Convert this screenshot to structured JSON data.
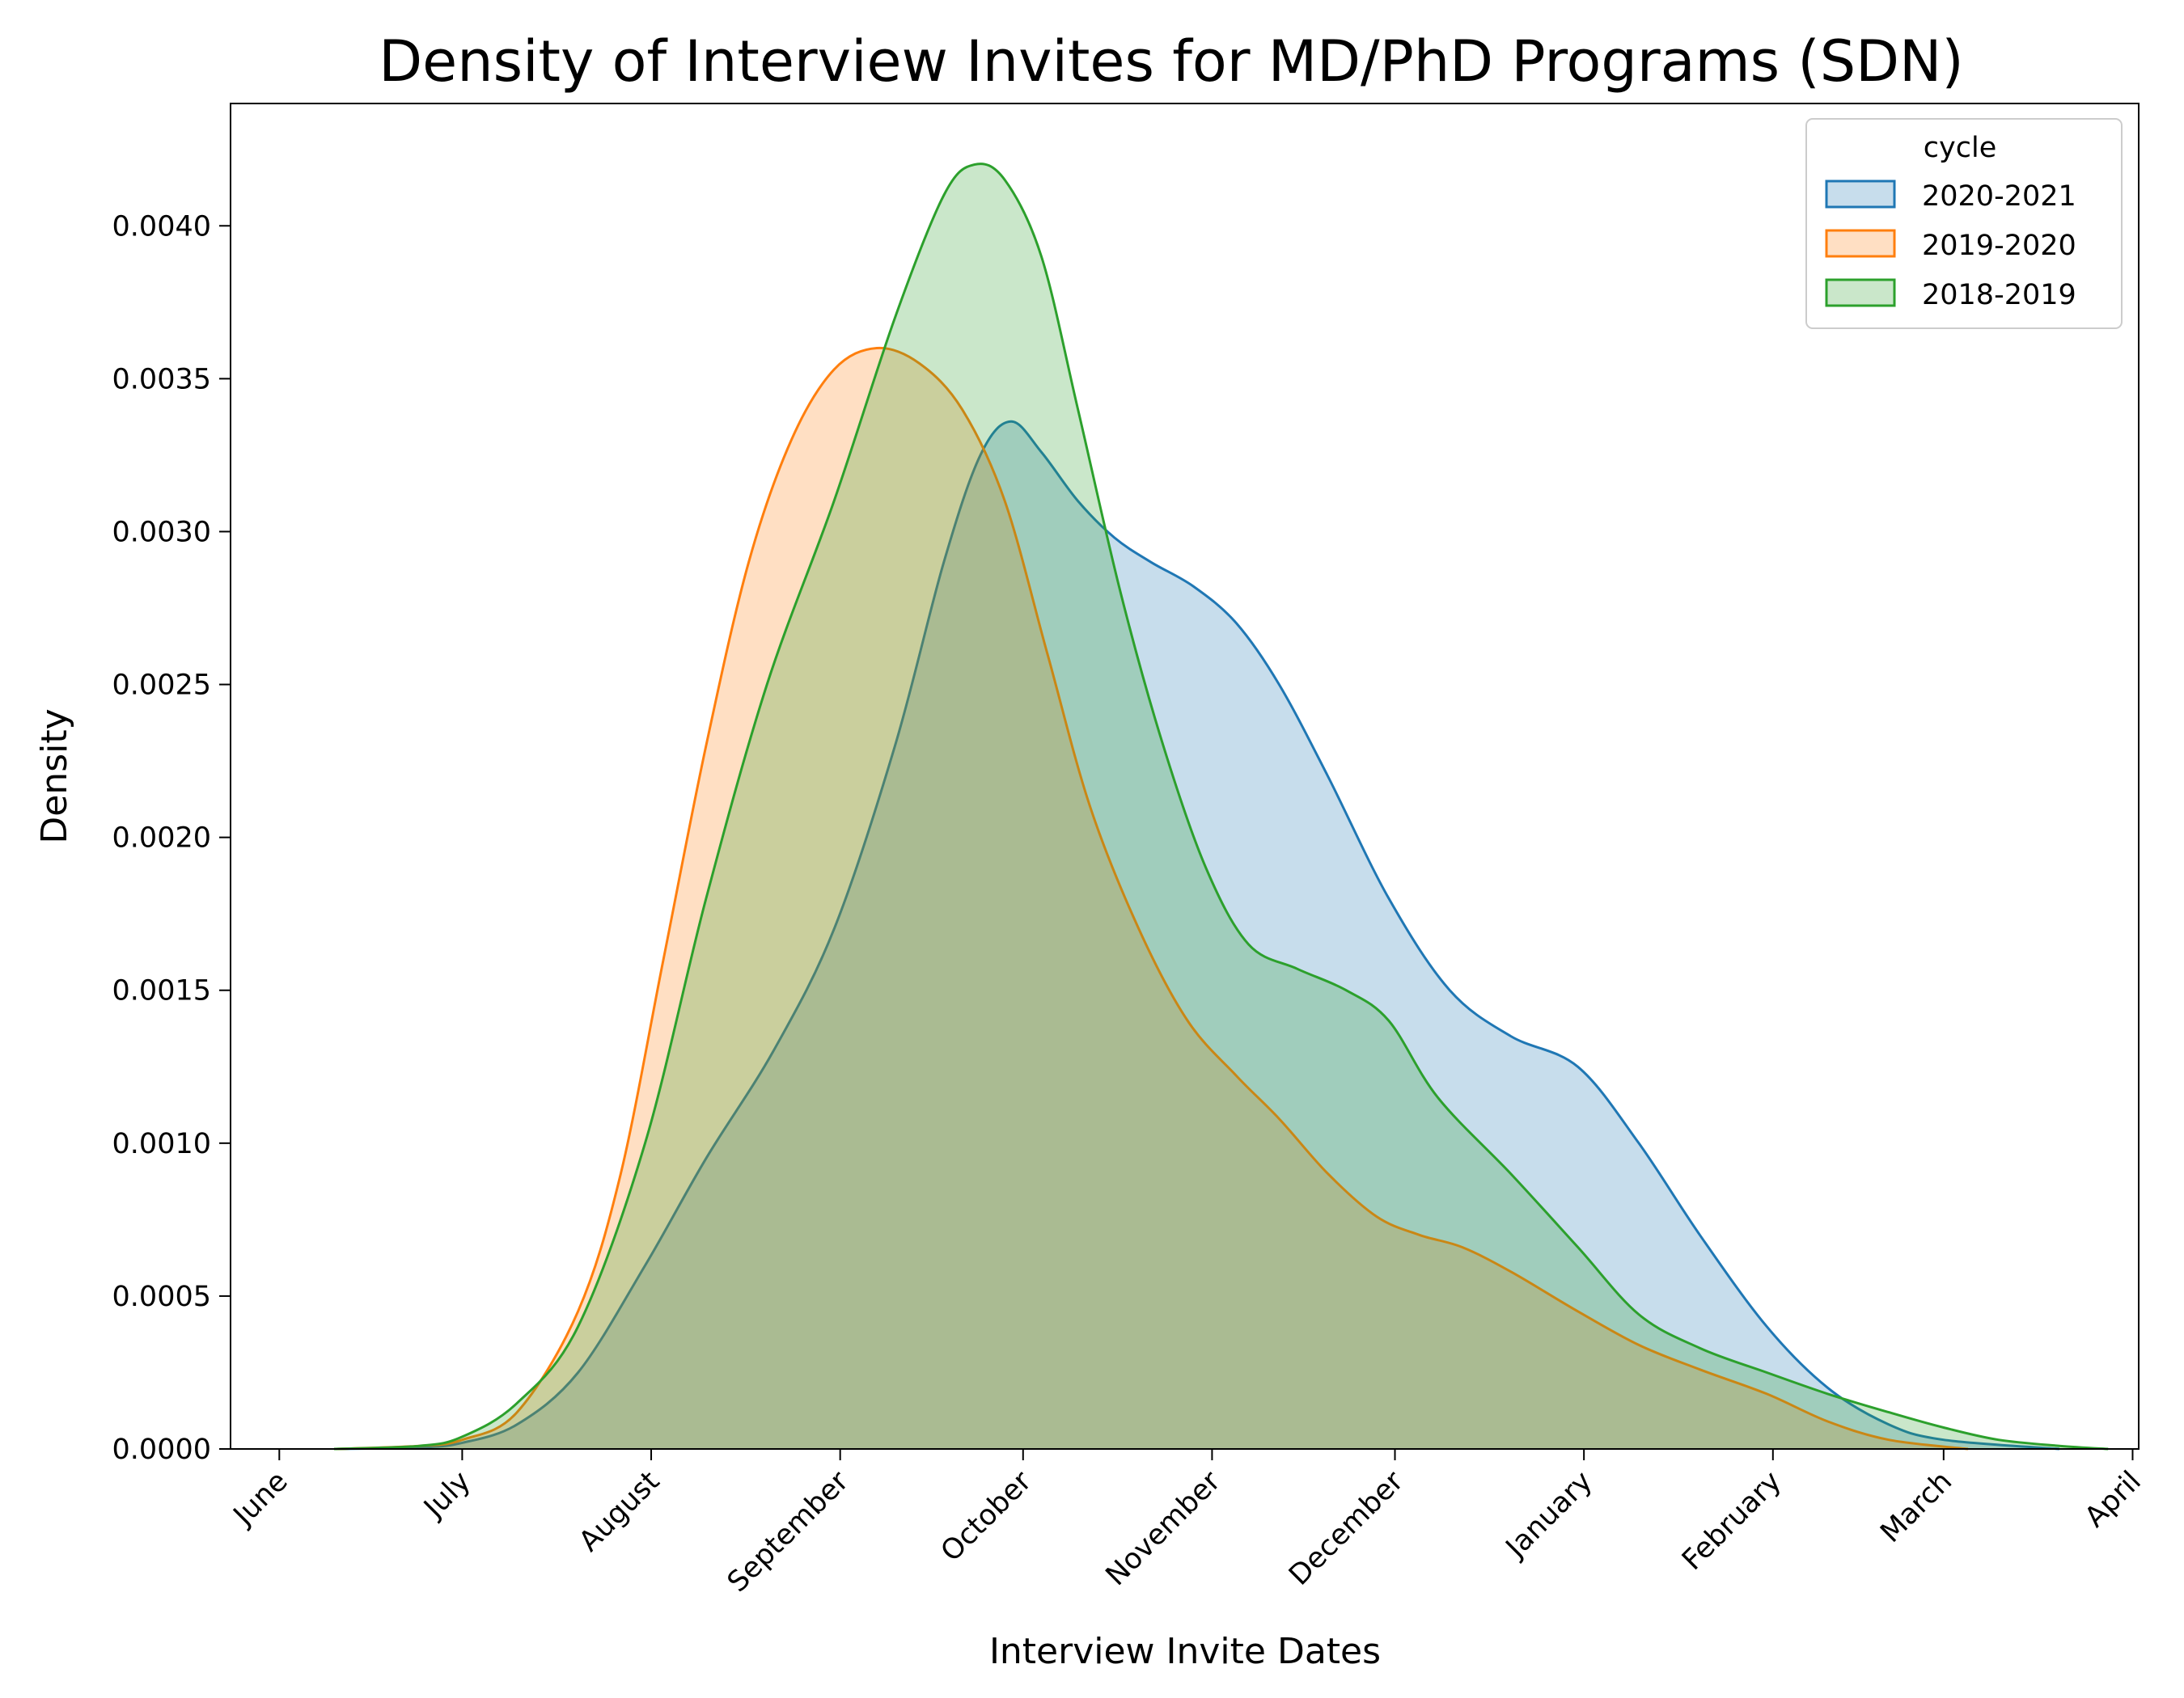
{
  "chart_data": {
    "type": "area",
    "title": "Density of Interview Invites for MD/PhD Programs (SDN)",
    "xlabel": "Interview Invite Dates",
    "ylabel": "Density",
    "x_ticks": [
      "June",
      "July",
      "August",
      "September",
      "October",
      "November",
      "December",
      "January",
      "February",
      "March",
      "April"
    ],
    "xlim": [
      "May 24",
      "April 2"
    ],
    "ylim": [
      0,
      0.0044
    ],
    "y_ticks": [
      "0.0000",
      "0.0005",
      "0.0010",
      "0.0015",
      "0.0020",
      "0.0025",
      "0.0030",
      "0.0035",
      "0.0040"
    ],
    "legend": {
      "title": "cycle",
      "position": "top-right"
    },
    "grid": false,
    "series": [
      {
        "name": "2020-2021",
        "color": "#1f77b4",
        "points": [
          [
            "Jun 10",
            0
          ],
          [
            "Jun 24",
            5e-06
          ],
          [
            "Jul 1",
            2e-05
          ],
          [
            "Jul 10",
            8e-05
          ],
          [
            "Jul 20",
            0.00025
          ],
          [
            "Jul 31",
            0.0006
          ],
          [
            "Aug 10",
            0.00095
          ],
          [
            "Aug 21",
            0.0013
          ],
          [
            "Aug 31",
            0.0017
          ],
          [
            "Sep 10",
            0.0023
          ],
          [
            "Sep 18",
            0.0029
          ],
          [
            "Sep 24",
            0.00325
          ],
          [
            "Sep 29",
            0.00336
          ],
          [
            "Oct 4",
            0.00326
          ],
          [
            "Oct 10",
            0.0031
          ],
          [
            "Oct 16",
            0.00298
          ],
          [
            "Oct 22",
            0.0029
          ],
          [
            "Oct 29",
            0.00282
          ],
          [
            "Nov 5",
            0.0027
          ],
          [
            "Nov 12",
            0.0025
          ],
          [
            "Nov 20",
            0.0022
          ],
          [
            "Nov 30",
            0.0018
          ],
          [
            "Dec 10",
            0.0015
          ],
          [
            "Dec 20",
            0.00135
          ],
          [
            "Dec 31",
            0.00125
          ],
          [
            "Jan 10",
            0.001
          ],
          [
            "Jan 20",
            0.0007
          ],
          [
            "Jan 31",
            0.0004
          ],
          [
            "Feb 10",
            0.0002
          ],
          [
            "Feb 20",
            8e-05
          ],
          [
            "Mar 1",
            3e-05
          ],
          [
            "Mar 20",
            0
          ]
        ]
      },
      {
        "name": "2019-2020",
        "color": "#ff7f0e",
        "points": [
          [
            "Jun 10",
            0
          ],
          [
            "Jun 24",
            1e-05
          ],
          [
            "Jul 1",
            3e-05
          ],
          [
            "Jul 10",
            0.00012
          ],
          [
            "Jul 20",
            0.00045
          ],
          [
            "Jul 27",
            0.0009
          ],
          [
            "Aug 3",
            0.0016
          ],
          [
            "Aug 10",
            0.0023
          ],
          [
            "Aug 17",
            0.0029
          ],
          [
            "Aug 24",
            0.0033
          ],
          [
            "Aug 31",
            0.00353
          ],
          [
            "Sep 7",
            0.0036
          ],
          [
            "Sep 14",
            0.00355
          ],
          [
            "Sep 21",
            0.0034
          ],
          [
            "Sep 28",
            0.0031
          ],
          [
            "Oct 5",
            0.0026
          ],
          [
            "Oct 12",
            0.0021
          ],
          [
            "Oct 20",
            0.0017
          ],
          [
            "Oct 28",
            0.0014
          ],
          [
            "Nov 5",
            0.00122
          ],
          [
            "Nov 12",
            0.00108
          ],
          [
            "Nov 20",
            0.0009
          ],
          [
            "Nov 28",
            0.00076
          ],
          [
            "Dec 5",
            0.0007
          ],
          [
            "Dec 12",
            0.00066
          ],
          [
            "Dec 20",
            0.00058
          ],
          [
            "Dec 31",
            0.00045
          ],
          [
            "Jan 10",
            0.00034
          ],
          [
            "Jan 20",
            0.00026
          ],
          [
            "Jan 31",
            0.00018
          ],
          [
            "Feb 10",
            9e-05
          ],
          [
            "Feb 20",
            3e-05
          ],
          [
            "Mar 5",
            0
          ]
        ]
      },
      {
        "name": "2018-2019",
        "color": "#2ca02c",
        "points": [
          [
            "Jun 10",
            0
          ],
          [
            "Jun 24",
            1e-05
          ],
          [
            "Jul 1",
            4e-05
          ],
          [
            "Jul 10",
            0.00015
          ],
          [
            "Jul 20",
            0.0004
          ],
          [
            "Jul 31",
            0.001
          ],
          [
            "Aug 10",
            0.0018
          ],
          [
            "Aug 20",
            0.0025
          ],
          [
            "Aug 31",
            0.0031
          ],
          [
            "Sep 10",
            0.0037
          ],
          [
            "Sep 18",
            0.0041
          ],
          [
            "Sep 23",
            0.0042
          ],
          [
            "Sep 28",
            0.00415
          ],
          [
            "Oct 4",
            0.0039
          ],
          [
            "Oct 10",
            0.0034
          ],
          [
            "Oct 17",
            0.0028
          ],
          [
            "Oct 24",
            0.0023
          ],
          [
            "Oct 31",
            0.0019
          ],
          [
            "Nov 7",
            0.00165
          ],
          [
            "Nov 15",
            0.00157
          ],
          [
            "Nov 23",
            0.0015
          ],
          [
            "Nov 30",
            0.0014
          ],
          [
            "Dec 8",
            0.00115
          ],
          [
            "Dec 20",
            0.0009
          ],
          [
            "Dec 31",
            0.00066
          ],
          [
            "Jan 10",
            0.00044
          ],
          [
            "Jan 20",
            0.00033
          ],
          [
            "Jan 31",
            0.00025
          ],
          [
            "Feb 10",
            0.00018
          ],
          [
            "Feb 20",
            0.00012
          ],
          [
            "Mar 1",
            7e-05
          ],
          [
            "Mar 10",
            3e-05
          ],
          [
            "Mar 20",
            1e-05
          ],
          [
            "Mar 28",
            0
          ]
        ]
      }
    ]
  }
}
